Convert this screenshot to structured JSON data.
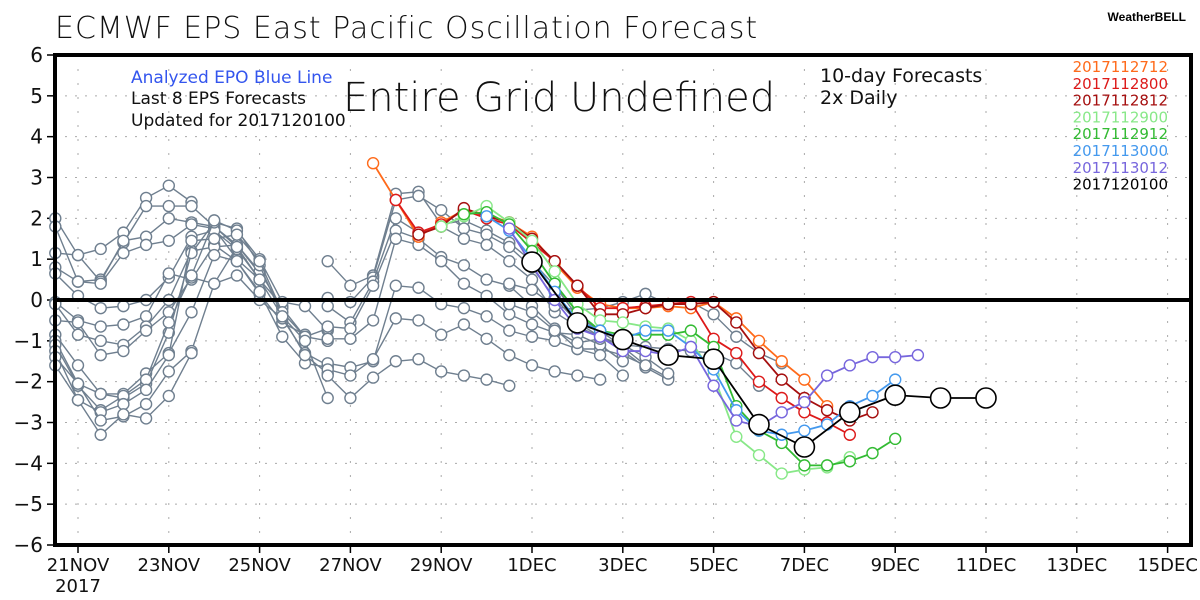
{
  "header": {
    "title": "ECMWF EPS East Pacific Oscillation Forecast",
    "brand": "WeatherBELL"
  },
  "annotations": {
    "analyzed": "Analyzed EPO Blue Line",
    "last8": "Last 8 EPS Forecasts",
    "updated": "Updated for 2017120100",
    "overlay": "Entire Grid Undefined",
    "tenday": "10-day Forecasts",
    "daily": "2x Daily"
  },
  "chart_data": {
    "type": "line",
    "title": "ECMWF EPS East Pacific Oscillation Forecast",
    "xlabel": "",
    "ylabel": "",
    "ylim": [
      -6,
      6
    ],
    "yticks": [
      "6",
      "5",
      "4",
      "3",
      "2",
      "1",
      "0",
      "-1",
      "-2",
      "-3",
      "-4",
      "-5",
      "-6"
    ],
    "xlim_days": [
      -0.6,
      24.4
    ],
    "xtick_labels": [
      "21NOV",
      "23NOV",
      "25NOV",
      "27NOV",
      "29NOV",
      "1DEC",
      "3DEC",
      "5DEC",
      "7DEC",
      "9DEC",
      "11DEC",
      "13DEC",
      "15DEC"
    ],
    "xtick_days": [
      0,
      2,
      4,
      6,
      8,
      10,
      12,
      14,
      16,
      18,
      20,
      22,
      24
    ],
    "x_year_label": "2017",
    "x_unit": "days since 21NOV2017 00Z",
    "grid": true,
    "zero_line": true,
    "legend_position": "top-right",
    "analyzed": {
      "name": "2017120100",
      "color": "#000000",
      "x": [
        10,
        11,
        12,
        13,
        14,
        15,
        16,
        17,
        18,
        19,
        20
      ],
      "values": [
        0.93,
        -0.56,
        -0.97,
        -1.35,
        -1.45,
        -3.05,
        -3.6,
        -2.75,
        -2.33,
        -2.4,
        -2.4
      ]
    },
    "series": [
      {
        "name": "2017112712",
        "color": "#ff6a1a",
        "x0": 6.5,
        "values": [
          3.35,
          2.45,
          1.55,
          1.9,
          2.2,
          2.1,
          1.9,
          1.55,
          0.9,
          0.3,
          -0.1,
          -0.2,
          -0.2,
          -0.15,
          -0.2,
          -0.05,
          -0.45,
          -1.0,
          -1.5,
          -1.95,
          -2.6
        ]
      },
      {
        "name": "2017112800",
        "color": "#dd1a1a",
        "x0": 7.0,
        "values": [
          2.45,
          1.65,
          1.85,
          2.2,
          2.0,
          1.85,
          1.4,
          0.95,
          0.35,
          -0.2,
          -0.2,
          -0.15,
          -0.1,
          -0.05,
          -0.95,
          -1.3,
          -2.0,
          -2.4,
          -2.75,
          -3.0,
          -3.3
        ]
      },
      {
        "name": "2017112812",
        "color": "#a50f0f",
        "x0": 7.5,
        "values": [
          1.6,
          1.8,
          2.25,
          2.05,
          1.9,
          1.5,
          0.95,
          0.35,
          -0.35,
          -0.35,
          -0.2,
          -0.1,
          -0.1,
          -0.05,
          -0.55,
          -1.3,
          -1.95,
          -2.4,
          -2.7,
          -2.95,
          -2.75
        ]
      },
      {
        "name": "2017112900",
        "color": "#88e888",
        "x0": 8.0,
        "values": [
          1.8,
          2.05,
          2.3,
          1.9,
          1.45,
          0.7,
          -0.1,
          -0.5,
          -0.55,
          -0.65,
          -0.7,
          -1.0,
          -1.85,
          -3.35,
          -3.8,
          -4.25,
          -4.15,
          -4.1,
          -3.85
        ]
      },
      {
        "name": "2017112912",
        "color": "#33bb33",
        "x0": 8.5,
        "values": [
          2.1,
          2.15,
          1.85,
          1.2,
          0.4,
          -0.3,
          -0.75,
          -0.85,
          -0.85,
          -0.85,
          -0.75,
          -1.15,
          -2.6,
          -3.2,
          -3.5,
          -4.05,
          -4.05,
          -3.95,
          -3.75,
          -3.4
        ]
      },
      {
        "name": "2017113000",
        "color": "#4499ee",
        "x0": 9.0,
        "values": [
          2.05,
          1.7,
          1.0,
          0.2,
          -0.5,
          -0.75,
          -0.95,
          -0.75,
          -0.75,
          -1.15,
          -1.7,
          -2.7,
          -3.2,
          -3.3,
          -3.2,
          -3.05,
          -2.6,
          -2.35,
          -1.95
        ]
      },
      {
        "name": "2017113012",
        "color": "#7766dd",
        "x0": 9.5,
        "values": [
          1.75,
          0.85,
          0.0,
          -0.7,
          -0.9,
          -1.25,
          -1.25,
          -1.35,
          -1.15,
          -2.1,
          -2.95,
          -3.1,
          -2.75,
          -2.5,
          -1.85,
          -1.6,
          -1.4,
          -1.4,
          -1.35
        ]
      },
      {
        "name": "2017120100",
        "color": "#000000",
        "x0": 10.0,
        "hidden_in_legend_line": true,
        "values": []
      }
    ],
    "ensemble_old": {
      "color": "#6f7f8f",
      "traces": [
        {
          "x0": -0.5,
          "values": [
            2.0,
            1.1,
            1.25,
            1.65,
            2.5,
            2.8,
            2.4
          ]
        },
        {
          "x0": -0.5,
          "values": [
            1.8,
            0.45,
            0.5,
            1.4,
            2.3,
            2.3,
            2.3,
            1.8,
            1.3
          ]
        },
        {
          "x0": -0.5,
          "values": [
            1.15,
            1.1,
            0.45,
            1.45,
            1.55,
            2.0,
            1.9,
            1.8,
            1.35,
            0.65
          ]
        },
        {
          "x0": -0.5,
          "values": [
            0.8,
            0.45,
            0.4,
            1.15,
            1.35,
            1.45,
            1.85,
            1.75,
            1.0,
            0.5
          ]
        },
        {
          "x0": -0.5,
          "values": [
            0.65,
            0.1,
            -0.2,
            -0.15,
            0.0,
            0.55,
            1.55,
            1.7,
            1.25,
            0.5,
            -0.15
          ]
        },
        {
          "x0": -0.5,
          "values": [
            -0.05,
            -0.5,
            -0.65,
            -0.6,
            -0.4,
            0.65,
            0.5,
            1.35,
            0.95,
            0.15,
            -0.55,
            -0.85
          ]
        },
        {
          "x0": -0.5,
          "values": [
            -0.1,
            -0.85,
            -1.0,
            -1.1,
            -0.65,
            0.0,
            1.2,
            1.3,
            1.35,
            0.7,
            -0.2,
            -0.9,
            -1.0
          ]
        },
        {
          "x0": -0.5,
          "values": [
            -0.5,
            -0.55,
            -1.35,
            -1.25,
            -0.75,
            -0.3,
            0.55,
            0.4,
            0.6,
            0.0,
            -0.45,
            -1.3,
            -1.6
          ]
        },
        {
          "x0": -0.5,
          "values": [
            -0.85,
            -1.6,
            -2.3,
            -2.3,
            -1.8,
            -1.3,
            -0.3,
            1.1,
            0.95,
            0.2,
            -0.9,
            -1.55,
            -1.65
          ]
        },
        {
          "x0": -0.5,
          "values": [
            -1.0,
            -2.05,
            -2.3,
            -2.4,
            -2.05,
            -0.8,
            1.15,
            1.9,
            1.75,
            0.85,
            -0.4,
            -1.35,
            -1.8
          ]
        },
        {
          "x0": -0.5,
          "values": [
            -1.1,
            -2.1,
            -2.7,
            -2.35,
            -1.95,
            -0.55,
            0.6,
            1.95,
            1.7,
            1.0,
            -0.05,
            -0.15,
            -0.75
          ]
        },
        {
          "x0": -0.5,
          "values": [
            -1.25,
            -2.45,
            -2.75,
            -2.55,
            -2.2,
            -1.35,
            1.45,
            1.5,
            1.6,
            0.95,
            -0.3,
            -0.9,
            -0.7
          ]
        },
        {
          "x0": -0.5,
          "values": [
            -1.4,
            -2.05,
            -2.95,
            -2.85,
            -2.55,
            -1.75,
            -1.25,
            0.4,
            1.3,
            0.5,
            -0.4,
            -1.0,
            -2.4
          ]
        },
        {
          "x0": -0.5,
          "values": [
            -1.6,
            -2.45,
            -3.3,
            -2.8,
            -2.9,
            -2.35,
            -1.3
          ]
        },
        {
          "x0": 5.5,
          "values": [
            0.95,
            0.35,
            0.6,
            2.6,
            2.65,
            1.85,
            1.95,
            1.7,
            1.4,
            0.95,
            0.35,
            -0.4,
            -0.75,
            -1.15,
            -1.6,
            -1.9
          ]
        },
        {
          "x0": 5.5,
          "values": [
            0.05,
            -0.05,
            0.55,
            2.45,
            2.55,
            2.2,
            1.75,
            1.6,
            1.3,
            0.8,
            0.05,
            -0.55,
            -0.9,
            -1.25,
            -1.65,
            -1.95
          ]
        },
        {
          "x0": 5.5,
          "values": [
            -0.15,
            -0.55,
            0.45,
            2.0,
            1.65,
            1.8,
            1.5,
            1.35,
            0.95,
            0.5,
            -0.3,
            -0.65,
            -0.9,
            -1.1,
            -1.4,
            -1.8
          ]
        },
        {
          "x0": 5.5,
          "values": [
            -0.65,
            -0.7,
            0.35,
            1.7,
            1.5,
            1.05,
            0.85,
            0.5,
            0.35,
            -0.15,
            -0.7,
            -1.2,
            -1.2,
            -1.35,
            -1.6
          ]
        },
        {
          "x0": 5.5,
          "values": [
            -0.95,
            -0.95,
            -0.5,
            1.5,
            1.35,
            0.95,
            0.4,
            0.1,
            -0.35,
            -0.6,
            -0.8,
            -0.85,
            -1.1,
            -1.5
          ]
        },
        {
          "x0": 5.5,
          "values": [
            -1.55,
            -1.65,
            -1.5,
            0.35,
            0.3,
            -0.1,
            -0.2,
            -0.4,
            -0.75,
            -0.9,
            -1.0,
            -1.2,
            -1.35,
            -1.85
          ]
        },
        {
          "x0": 5.5,
          "values": [
            -1.7,
            -1.85,
            -1.45,
            -0.45,
            -0.5,
            -0.85,
            -0.6,
            -0.95,
            -1.35,
            -1.6,
            -1.75,
            -1.85,
            -1.95
          ]
        },
        {
          "x0": 5.5,
          "values": [
            -1.85,
            -2.4,
            -1.9,
            -1.5,
            -1.45,
            -1.75,
            -1.85,
            -1.95,
            -2.1
          ]
        },
        {
          "x0": 9.5,
          "values": [
            0.4,
            0.25,
            -0.15,
            -0.25,
            -0.2,
            -0.05,
            0.15,
            -0.1,
            -0.05,
            -0.35,
            -0.9,
            -1.3,
            -1.55
          ]
        },
        {
          "x0": 9.5,
          "values": [
            -0.1,
            -0.3,
            -0.75,
            -1.05,
            -0.95,
            -1.1,
            -1.15,
            -1.2,
            -1.25,
            -1.3,
            -1.55,
            -2.1
          ]
        }
      ]
    }
  },
  "legend": [
    {
      "label": "2017112712",
      "color": "#ff6a1a"
    },
    {
      "label": "2017112800",
      "color": "#dd1a1a"
    },
    {
      "label": "2017112812",
      "color": "#a50f0f"
    },
    {
      "label": "2017112900",
      "color": "#88e888"
    },
    {
      "label": "2017112912",
      "color": "#33bb33"
    },
    {
      "label": "2017113000",
      "color": "#4499ee"
    },
    {
      "label": "2017113012",
      "color": "#7766dd"
    },
    {
      "label": "2017120100",
      "color": "#000000"
    }
  ],
  "colors": {
    "analyzed_text": "#3355ee",
    "ensemble": "#6f7f8f",
    "axis": "#000000",
    "grid": "#aaaaaa"
  }
}
